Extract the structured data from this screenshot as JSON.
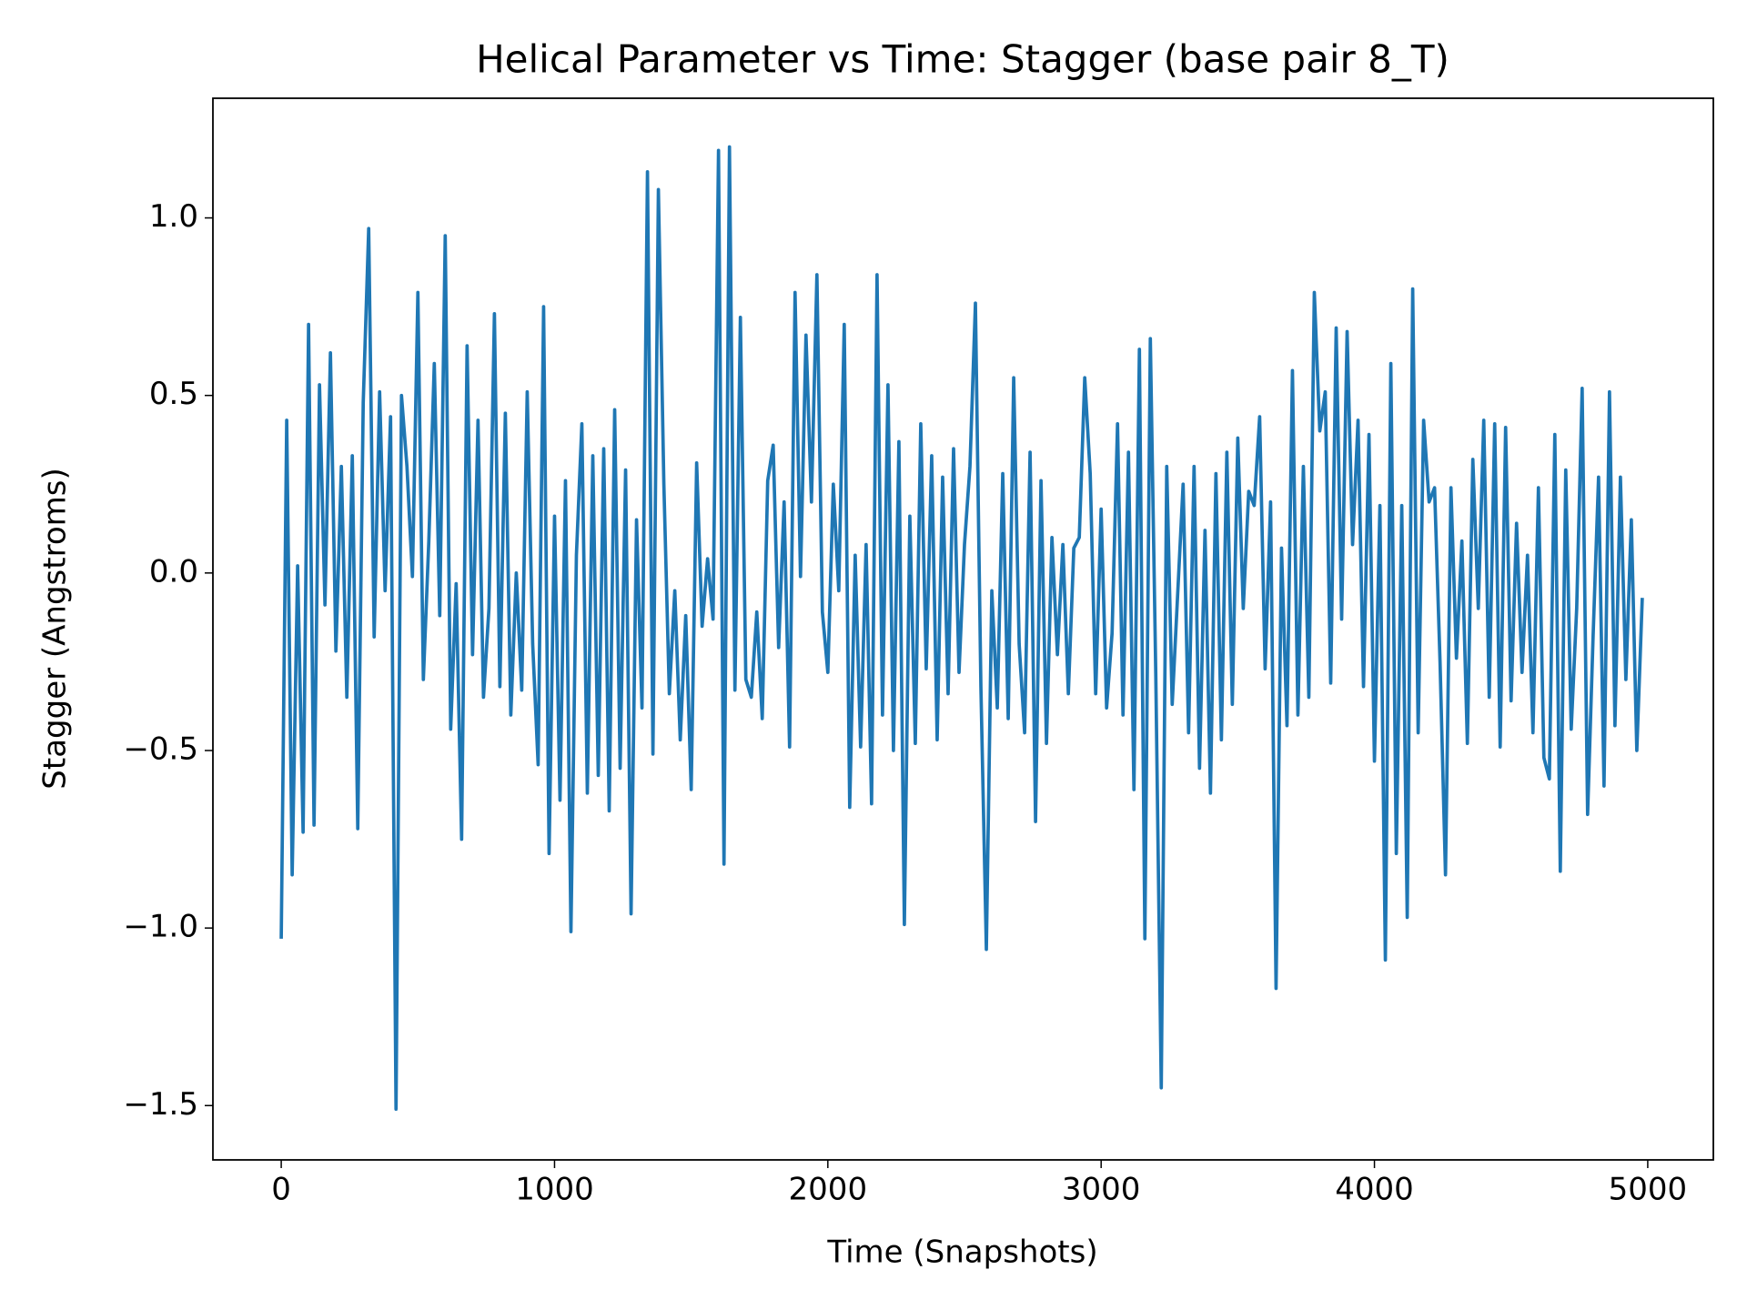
{
  "chart_data": {
    "type": "line",
    "title": "Helical Parameter vs Time: Stagger (base pair  8_T)",
    "xlabel": "Time (Snapshots)",
    "ylabel": "Stagger (Angstroms)",
    "color": "#1f77b4",
    "x": [
      0,
      20,
      40,
      60,
      80,
      100,
      120,
      140,
      160,
      180,
      200,
      220,
      240,
      260,
      280,
      300,
      320,
      340,
      360,
      380,
      400,
      420,
      440,
      460,
      480,
      500,
      520,
      540,
      560,
      580,
      600,
      620,
      640,
      660,
      680,
      700,
      720,
      740,
      760,
      780,
      800,
      820,
      840,
      860,
      880,
      900,
      920,
      940,
      960,
      980,
      1000,
      1020,
      1040,
      1060,
      1080,
      1100,
      1120,
      1140,
      1160,
      1180,
      1200,
      1220,
      1240,
      1260,
      1280,
      1300,
      1320,
      1340,
      1360,
      1380,
      1400,
      1420,
      1440,
      1460,
      1480,
      1500,
      1520,
      1540,
      1560,
      1580,
      1600,
      1620,
      1640,
      1660,
      1680,
      1700,
      1720,
      1740,
      1760,
      1780,
      1800,
      1820,
      1840,
      1860,
      1880,
      1900,
      1920,
      1940,
      1960,
      1980,
      2000,
      2020,
      2040,
      2060,
      2080,
      2100,
      2120,
      2140,
      2160,
      2180,
      2200,
      2220,
      2240,
      2260,
      2280,
      2300,
      2320,
      2340,
      2360,
      2380,
      2400,
      2420,
      2440,
      2460,
      2480,
      2500,
      2520,
      2540,
      2560,
      2580,
      2600,
      2620,
      2640,
      2660,
      2680,
      2700,
      2720,
      2740,
      2760,
      2780,
      2800,
      2820,
      2840,
      2860,
      2880,
      2900,
      2920,
      2940,
      2960,
      2980,
      3000,
      3020,
      3040,
      3060,
      3080,
      3100,
      3120,
      3140,
      3160,
      3180,
      3200,
      3220,
      3240,
      3260,
      3280,
      3300,
      3320,
      3340,
      3360,
      3380,
      3400,
      3420,
      3440,
      3460,
      3480,
      3500,
      3520,
      3540,
      3560,
      3580,
      3600,
      3620,
      3640,
      3660,
      3680,
      3700,
      3720,
      3740,
      3760,
      3780,
      3800,
      3820,
      3840,
      3860,
      3880,
      3900,
      3920,
      3940,
      3960,
      3980,
      4000,
      4020,
      4040,
      4060,
      4080,
      4100,
      4120,
      4140,
      4160,
      4180,
      4200,
      4220,
      4240,
      4260,
      4280,
      4300,
      4320,
      4340,
      4360,
      4380,
      4400,
      4420,
      4440,
      4460,
      4480,
      4500,
      4520,
      4540,
      4560,
      4580,
      4600,
      4620,
      4640,
      4660,
      4680,
      4700,
      4720,
      4740,
      4760,
      4780,
      4800,
      4820,
      4840,
      4860,
      4880,
      4900,
      4920,
      4940,
      4960,
      4980
    ],
    "values": [
      -1.03,
      0.43,
      -0.85,
      0.02,
      -0.73,
      0.7,
      -0.71,
      0.53,
      -0.09,
      0.62,
      -0.22,
      0.3,
      -0.35,
      0.33,
      -0.72,
      0.48,
      0.97,
      -0.18,
      0.51,
      -0.05,
      0.44,
      -1.51,
      0.5,
      0.3,
      -0.01,
      0.79,
      -0.3,
      0.09,
      0.59,
      -0.12,
      0.95,
      -0.44,
      -0.03,
      -0.75,
      0.64,
      -0.23,
      0.43,
      -0.35,
      -0.1,
      0.73,
      -0.32,
      0.45,
      -0.4,
      0.0,
      -0.33,
      0.51,
      -0.2,
      -0.54,
      0.75,
      -0.79,
      0.16,
      -0.64,
      0.26,
      -1.01,
      0.05,
      0.42,
      -0.62,
      0.33,
      -0.57,
      0.35,
      -0.67,
      0.46,
      -0.55,
      0.29,
      -0.96,
      0.15,
      -0.38,
      1.13,
      -0.51,
      1.08,
      0.25,
      -0.34,
      -0.05,
      -0.47,
      -0.12,
      -0.61,
      0.31,
      -0.15,
      0.04,
      -0.13,
      1.19,
      -0.82,
      1.2,
      -0.33,
      0.72,
      -0.3,
      -0.35,
      -0.11,
      -0.41,
      0.26,
      0.36,
      -0.21,
      0.2,
      -0.49,
      0.79,
      -0.01,
      0.67,
      0.2,
      0.84,
      -0.11,
      -0.28,
      0.25,
      -0.05,
      0.7,
      -0.66,
      0.05,
      -0.49,
      0.08,
      -0.65,
      0.84,
      -0.4,
      0.53,
      -0.5,
      0.37,
      -0.99,
      0.16,
      -0.48,
      0.42,
      -0.27,
      0.33,
      -0.47,
      0.27,
      -0.34,
      0.35,
      -0.28,
      0.08,
      0.3,
      0.76,
      -0.32,
      -1.06,
      -0.05,
      -0.38,
      0.28,
      -0.41,
      0.55,
      -0.2,
      -0.45,
      0.34,
      -0.7,
      0.26,
      -0.48,
      0.1,
      -0.23,
      0.08,
      -0.34,
      0.07,
      0.1,
      0.55,
      0.28,
      -0.34,
      0.18,
      -0.38,
      -0.17,
      0.42,
      -0.4,
      0.34,
      -0.61,
      0.63,
      -1.03,
      0.66,
      -0.29,
      -1.45,
      0.3,
      -0.37,
      -0.06,
      0.25,
      -0.45,
      0.3,
      -0.55,
      0.12,
      -0.62,
      0.28,
      -0.47,
      0.34,
      -0.37,
      0.38,
      -0.1,
      0.23,
      0.19,
      0.44,
      -0.27,
      0.2,
      -1.17,
      0.07,
      -0.43,
      0.57,
      -0.4,
      0.3,
      -0.35,
      0.79,
      0.4,
      0.51,
      -0.31,
      0.69,
      -0.13,
      0.68,
      0.08,
      0.43,
      -0.32,
      0.39,
      -0.53,
      0.19,
      -1.09,
      0.59,
      -0.79,
      0.19,
      -0.97,
      0.8,
      -0.45,
      0.43,
      0.2,
      0.24,
      -0.25,
      -0.85,
      0.24,
      -0.24,
      0.09,
      -0.48,
      0.32,
      -0.1,
      0.43,
      -0.35,
      0.42,
      -0.49,
      0.41,
      -0.36,
      0.14,
      -0.28,
      0.05,
      -0.45,
      0.24,
      -0.52,
      -0.58,
      0.39,
      -0.84,
      0.29,
      -0.44,
      -0.1,
      0.52,
      -0.68,
      -0.18,
      0.27,
      -0.6,
      0.51,
      -0.43,
      0.27,
      -0.3,
      0.15,
      -0.5,
      -0.07
    ],
    "xlim": [
      -250,
      5240
    ],
    "ylim": [
      -1.653,
      1.337
    ],
    "xticks": [
      0,
      1000,
      2000,
      3000,
      4000,
      5000
    ],
    "yticks": [
      {
        "value": -1.5,
        "label": "−1.5"
      },
      {
        "value": -1.0,
        "label": "−1.0"
      },
      {
        "value": -0.5,
        "label": "−0.5"
      },
      {
        "value": 0,
        "label": "0.0"
      },
      {
        "value": 0.5,
        "label": "0.5"
      },
      {
        "value": 1.0,
        "label": "1.0"
      }
    ],
    "grid": false
  }
}
